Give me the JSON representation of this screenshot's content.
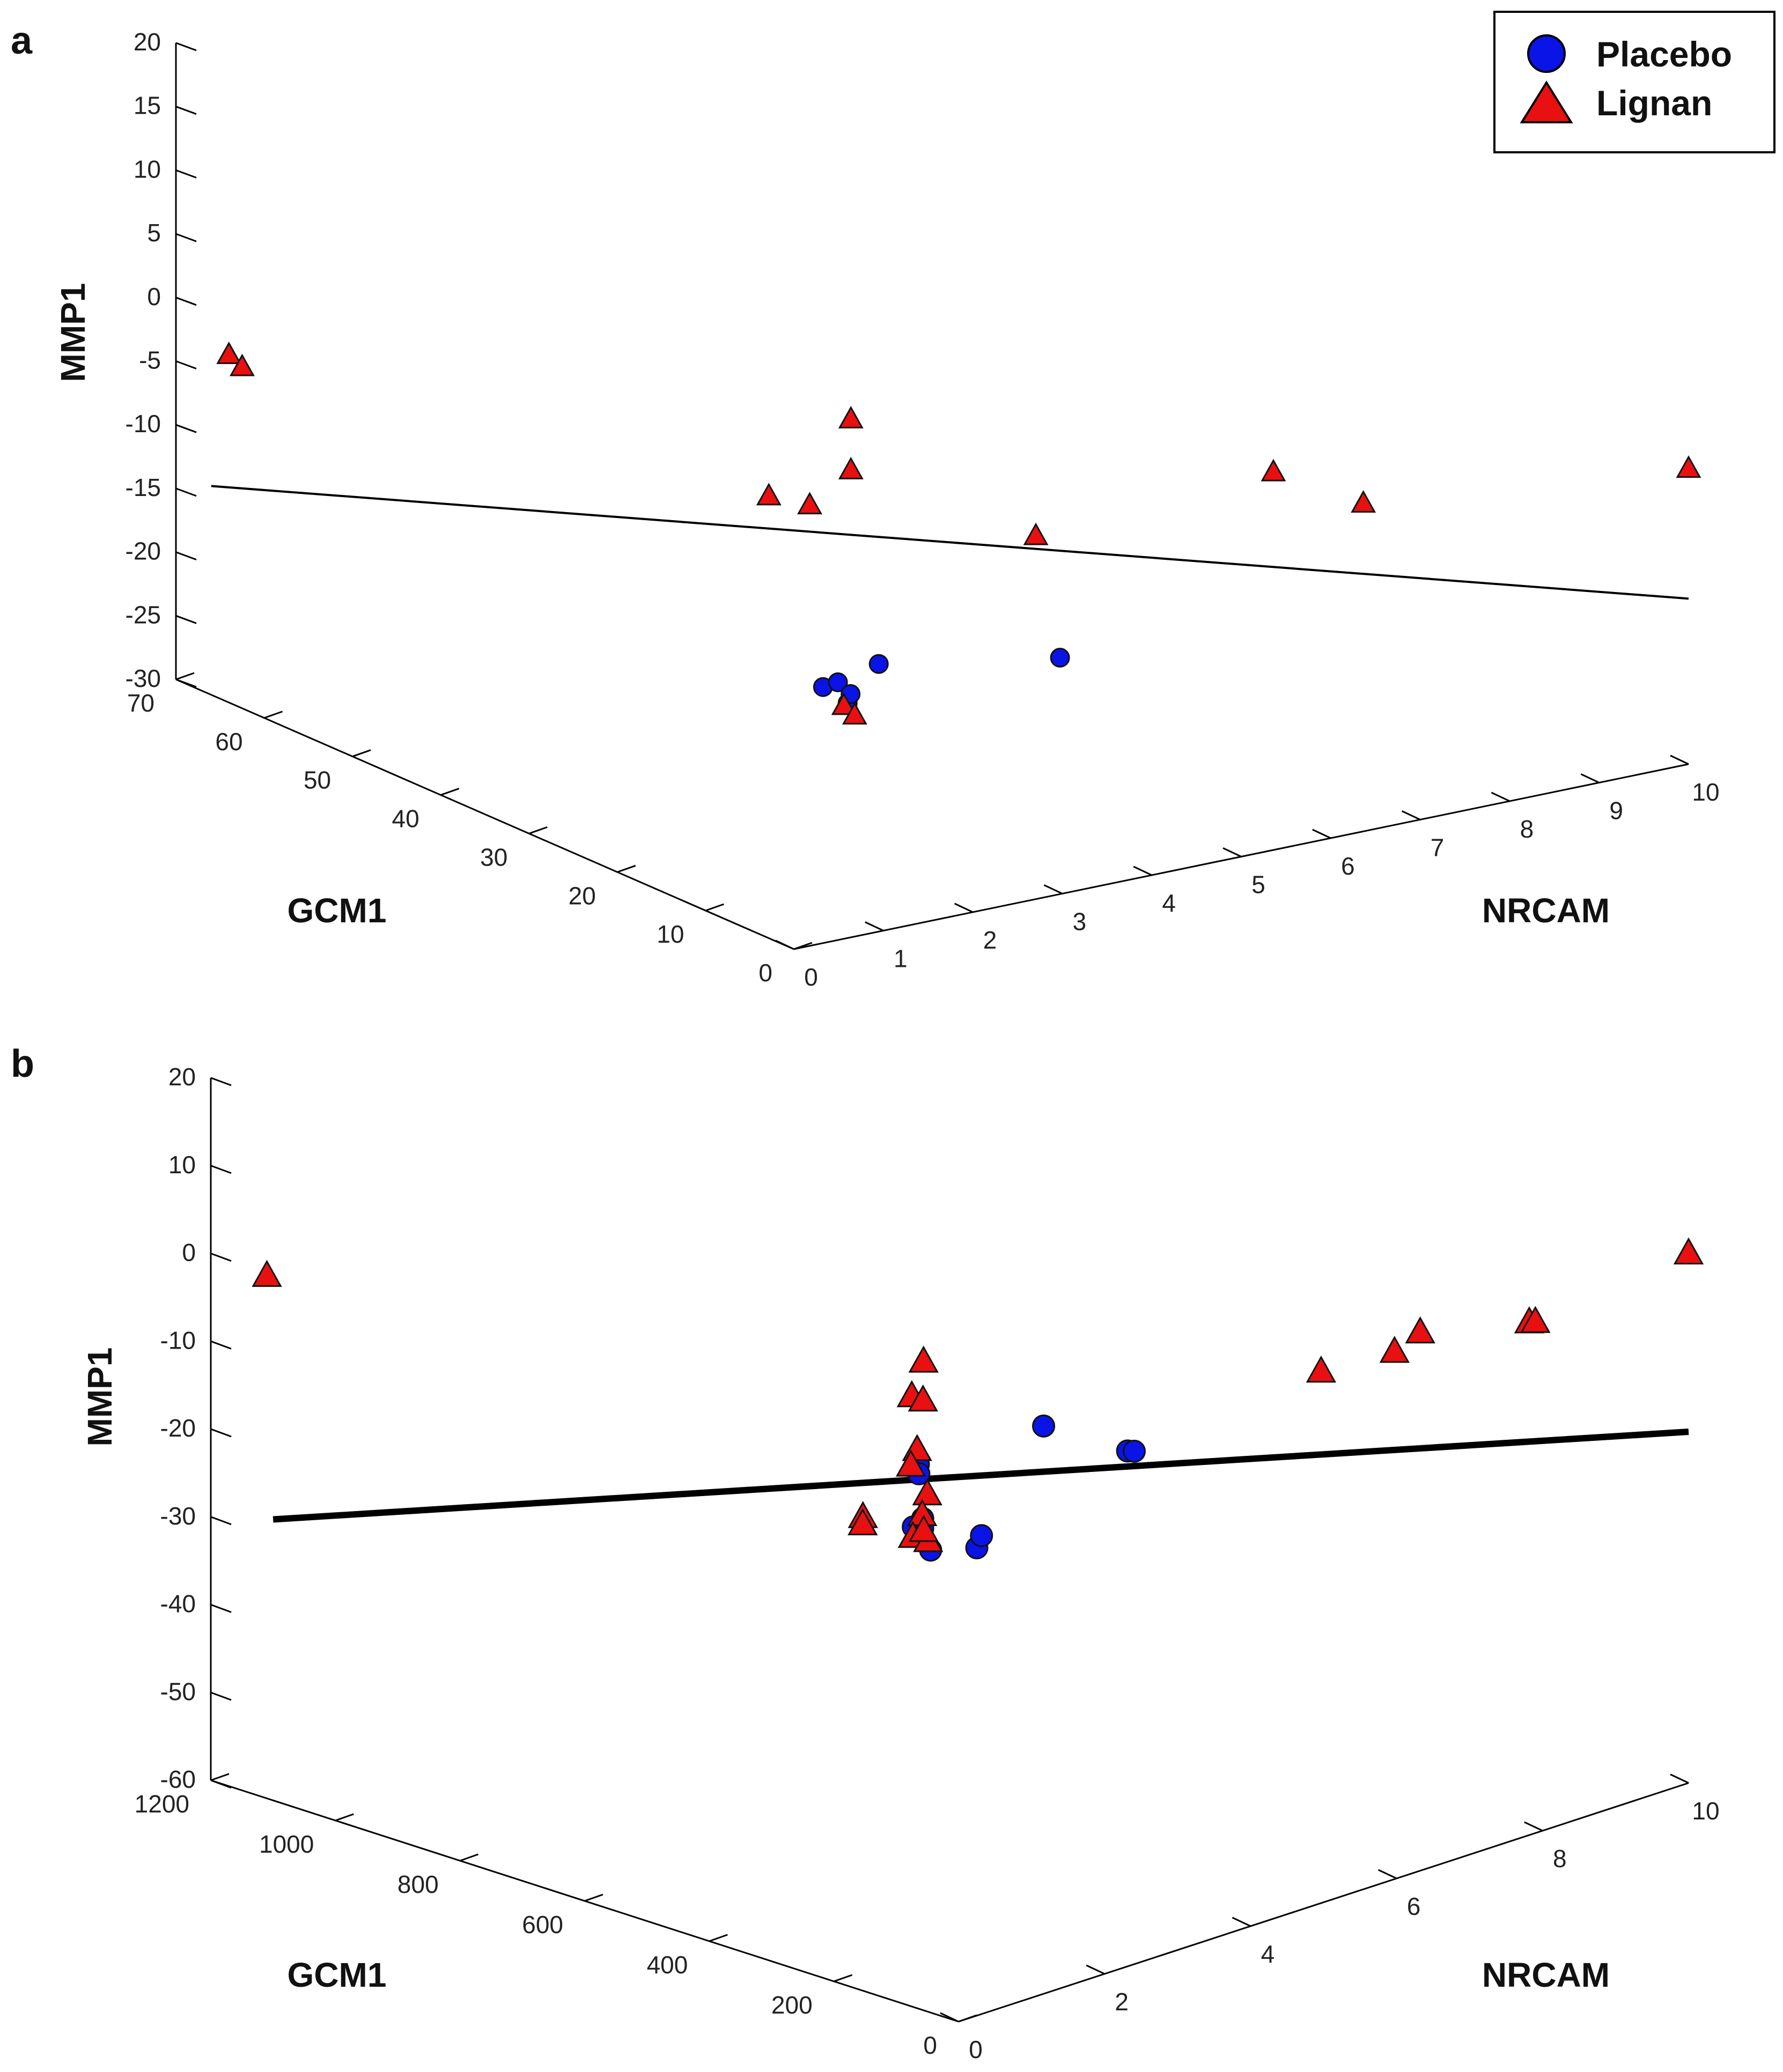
{
  "chart_data": [
    {
      "type": "scatter",
      "panel_label": "a",
      "zlabel": "MMP1",
      "xlabel": "NRCAM",
      "ylabel": "GCM1",
      "z_ticks": [
        "20",
        "15",
        "10",
        "5",
        "0",
        "-5",
        "-10",
        "-15",
        "-20",
        "-25",
        "-30"
      ],
      "x_ticks": [
        "0",
        "1",
        "2",
        "3",
        "4",
        "5",
        "6",
        "7",
        "8",
        "9",
        "10"
      ],
      "y_ticks": [
        "0",
        "10",
        "20",
        "30",
        "40",
        "50",
        "60",
        "70"
      ],
      "zlim": [
        -30,
        20
      ],
      "xlim": [
        0,
        10
      ],
      "ylim": [
        0,
        70
      ],
      "legend": {
        "position": "top-right",
        "entries": [
          {
            "name": "Placebo",
            "marker": "circle",
            "color": "#0a14e6"
          },
          {
            "name": "Lignan",
            "marker": "triangle",
            "color": "#e81010"
          }
        ]
      },
      "fit_line": {
        "start": [
          0,
          66,
          -13.6
        ],
        "end": [
          10,
          0,
          -17.0
        ]
      },
      "series": [
        {
          "name": "Placebo",
          "marker": "circle",
          "color": "#0a14e6",
          "points": [
            [
              2.63,
              23.35,
              -20.3
            ],
            [
              2.73,
              22.68,
              -19.87
            ],
            [
              2.67,
              20.97,
              -20.9
            ],
            [
              2.75,
              21.45,
              -20.45
            ],
            [
              3.13,
              22.11,
              -18.84
            ],
            [
              4.34,
              13.84,
              -17.6
            ]
          ]
        },
        {
          "name": "Lignan",
          "marker": "triangle",
          "color": "#e81010",
          "points": [
            [
              0,
              64,
              -2.7
            ],
            [
              0,
              62.5,
              -3.2
            ],
            [
              2.68,
              30,
              -7.4
            ],
            [
              2.9,
              27.6,
              -7.7
            ],
            [
              3.4,
              28,
              -1.8
            ],
            [
              3.4,
              28,
              -5.8
            ],
            [
              4.5,
              18.2,
              -9.6
            ],
            [
              6.79,
              14.5,
              -6.8
            ],
            [
              7.46,
              11.1,
              -9.2
            ],
            [
              10,
              0,
              -6.8
            ],
            [
              2.68,
              21.5,
              -21.3
            ],
            [
              2.73,
              20.78,
              -21.9
            ]
          ]
        }
      ]
    },
    {
      "type": "scatter",
      "panel_label": "b",
      "zlabel": "MMP1",
      "xlabel": "NRCAM",
      "ylabel": "GCM1",
      "z_ticks": [
        "20",
        "10",
        "0",
        "-10",
        "-20",
        "-30",
        "-40",
        "-50",
        "-60"
      ],
      "x_ticks": [
        "0",
        "2",
        "4",
        "6",
        "8",
        "10"
      ],
      "y_ticks": [
        "0",
        "200",
        "400",
        "600",
        "800",
        "1000",
        "1200"
      ],
      "zlim": [
        -60,
        20
      ],
      "xlim": [
        0,
        10
      ],
      "ylim": [
        0,
        1200
      ],
      "fit_line": {
        "start": [
          0,
          1100,
          -28.0
        ],
        "end": [
          10,
          0,
          -20.0
        ]
      },
      "series": [
        {
          "name": "Placebo",
          "marker": "circle",
          "color": "#0a14e6",
          "points": [
            [
              3.69,
              403,
              -25.3
            ],
            [
              3.7,
              498,
              -18.0
            ],
            [
              3.69,
              496,
              -19.0
            ],
            [
              3.7,
              491,
              -24.0
            ],
            [
              3.64,
              484,
              -24.8
            ],
            [
              3.81,
              519,
              -25.9
            ],
            [
              3.68,
              476,
              -27.2
            ],
            [
              3.72,
              399,
              -23.9
            ],
            [
              4.75,
              420,
              -14.7
            ],
            [
              5.61,
              386,
              -19.1
            ],
            [
              5.65,
              380,
              -19.1
            ]
          ]
        },
        {
          "name": "Lignan",
          "marker": "triangle",
          "color": "#e81010",
          "points": [
            [
              0,
              1110,
              -0.5
            ],
            [
              3.66,
              485,
              -5.9
            ],
            [
              3.61,
              498,
              -10.0
            ],
            [
              3.67,
              487,
              -10.4
            ],
            [
              3.64,
              493,
              -16.1
            ],
            [
              3.64,
              503,
              -18.1
            ],
            [
              3.72,
              486,
              -21.2
            ],
            [
              3.71,
              493,
              -23.7
            ],
            [
              3.65,
              501,
              -26.2
            ],
            [
              3.74,
              487,
              -26.6
            ],
            [
              3.47,
              560,
              -24.8
            ],
            [
              3.39,
              551,
              -25.2
            ],
            [
              7.1,
              250,
              -11.0
            ],
            [
              7.85,
              220,
              -10.1
            ],
            [
              7.86,
              180,
              -7.0
            ],
            [
              8.5,
              80,
              -5.3
            ],
            [
              8.55,
              76,
              -5.3
            ],
            [
              10,
              0,
              0.3
            ],
            [
              3.85,
              507,
              -26.2
            ]
          ]
        }
      ]
    }
  ]
}
